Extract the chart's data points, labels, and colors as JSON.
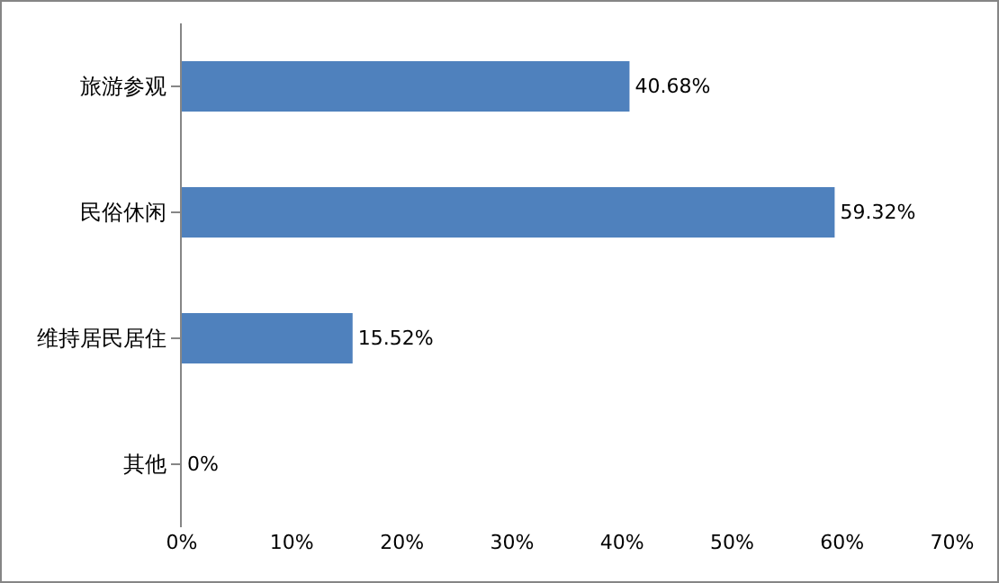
{
  "chart_data": {
    "type": "bar",
    "orientation": "horizontal",
    "categories": [
      "旅游参观",
      "民俗休闲",
      "维持居民居住",
      "其他"
    ],
    "values": [
      40.68,
      59.32,
      15.52,
      0
    ],
    "value_labels": [
      "40.68%",
      "59.32%",
      "15.52%",
      "0%"
    ],
    "color": "#4f81bd",
    "xlim": [
      0,
      70
    ],
    "xticks": [
      {
        "value": 0,
        "label": "0%"
      },
      {
        "value": 10,
        "label": "10%"
      },
      {
        "value": 20,
        "label": "20%"
      },
      {
        "value": 30,
        "label": "30%"
      },
      {
        "value": 40,
        "label": "40%"
      },
      {
        "value": 50,
        "label": "50%"
      },
      {
        "value": 60,
        "label": "60%"
      },
      {
        "value": 70,
        "label": "70%"
      }
    ],
    "grid": false
  }
}
